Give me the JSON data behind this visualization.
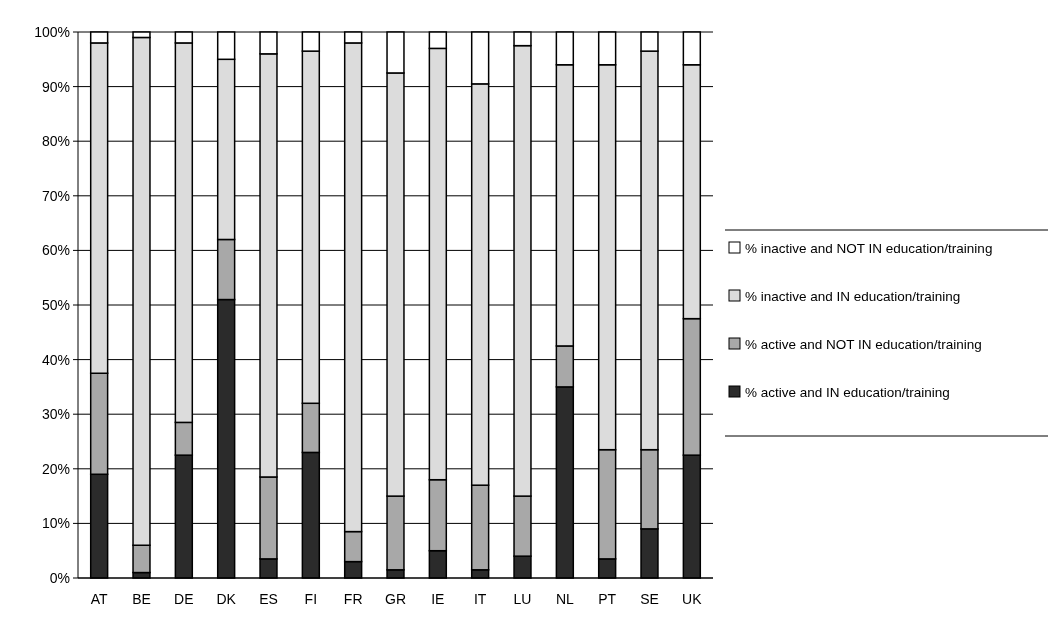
{
  "chart_data": {
    "type": "bar",
    "stacked": true,
    "categories": [
      "AT",
      "BE",
      "DE",
      "DK",
      "ES",
      "FI",
      "FR",
      "GR",
      "IE",
      "IT",
      "LU",
      "NL",
      "PT",
      "SE",
      "UK"
    ],
    "series": [
      {
        "name": "% active and IN education/training",
        "color": "#2b2b2b",
        "values": [
          19,
          1,
          22.5,
          51,
          3.5,
          23,
          3,
          1.5,
          5,
          1.5,
          4,
          35,
          3.5,
          9,
          22.5
        ]
      },
      {
        "name": "% active and NOT IN education/training",
        "color": "#a8a8a8",
        "values": [
          18.5,
          5,
          6,
          11,
          15,
          9,
          5.5,
          13.5,
          13,
          15.5,
          11,
          7.5,
          20,
          14.5,
          25
        ]
      },
      {
        "name": "% inactive and IN education/training",
        "color": "#dcdcdc",
        "values": [
          60.5,
          93,
          69.5,
          33,
          77.5,
          64.5,
          89.5,
          77.5,
          79,
          73.5,
          82.5,
          51.5,
          70.5,
          73,
          46.5
        ]
      },
      {
        "name": "% inactive and NOT IN education/training",
        "color": "#ffffff",
        "values": [
          2,
          1,
          2,
          5,
          4,
          3.5,
          2,
          7.5,
          3,
          9.5,
          2.5,
          6,
          6,
          3.5,
          6
        ]
      }
    ],
    "ylim": [
      0,
      100
    ],
    "yticks": [
      {
        "value": 0,
        "label": "0%"
      },
      {
        "value": 10,
        "label": "10%"
      },
      {
        "value": 20,
        "label": "20%"
      },
      {
        "value": 30,
        "label": "30%"
      },
      {
        "value": 40,
        "label": "40%"
      },
      {
        "value": 50,
        "label": "50%"
      },
      {
        "value": 60,
        "label": "60%"
      },
      {
        "value": 70,
        "label": "70%"
      },
      {
        "value": 80,
        "label": "80%"
      },
      {
        "value": 90,
        "label": "90%"
      },
      {
        "value": 100,
        "label": "100%"
      }
    ],
    "grid": "y",
    "legend": "right"
  }
}
